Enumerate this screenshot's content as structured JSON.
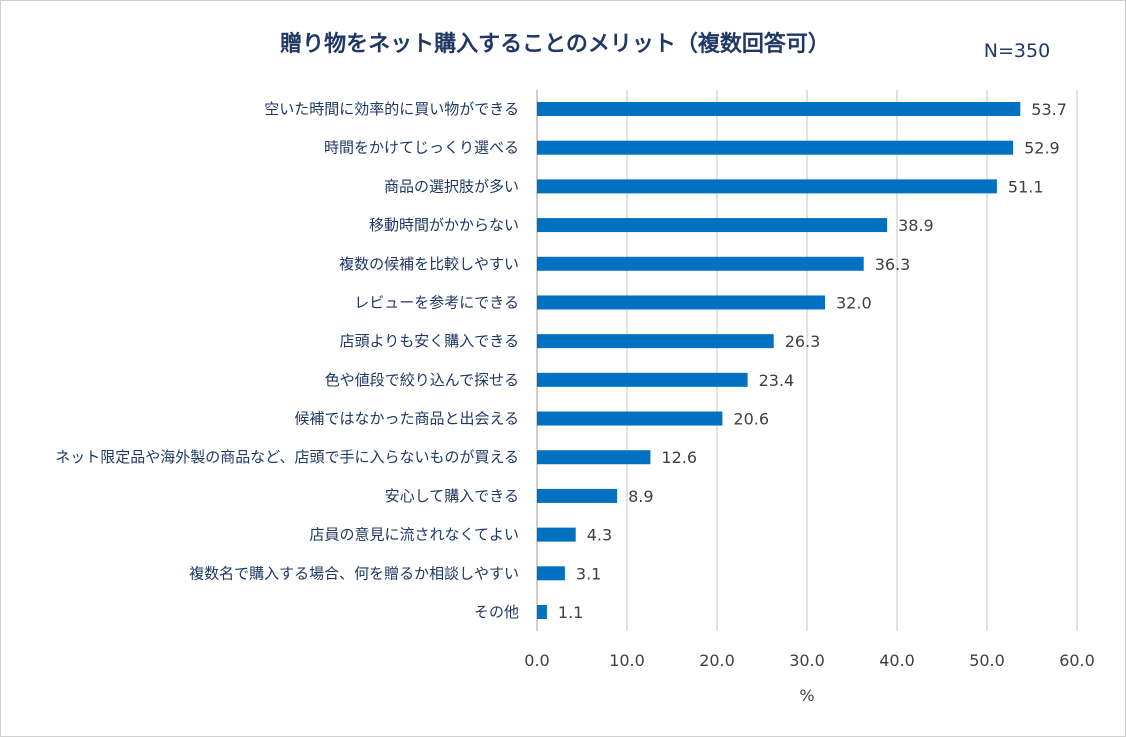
{
  "chart_data": {
    "type": "bar",
    "orientation": "horizontal",
    "title": "贈り物をネット購入することのメリット（複数回答可）",
    "annotation": "N=350",
    "xlabel": "%",
    "ylabel": "",
    "xlim": [
      0,
      60
    ],
    "ticks": [
      "0.0",
      "10.0",
      "20.0",
      "30.0",
      "40.0",
      "50.0",
      "60.0"
    ],
    "grid": true,
    "bar_color": "#0070c0",
    "categories": [
      "空いた時間に効率的に買い物ができる",
      "時間をかけてじっくり選べる",
      "商品の選択肢が多い",
      "移動時間がかからない",
      "複数の候補を比較しやすい",
      "レビューを参考にできる",
      "店頭よりも安く購入できる",
      "色や値段で絞り込んで探せる",
      "候補ではなかった商品と出会える",
      "ネット限定品や海外製の商品など、店頭で手に入らないものが買える",
      "安心して購入できる",
      "店員の意見に流されなくてよい",
      "複数名で購入する場合、何を贈るか相談しやすい",
      "その他"
    ],
    "values": [
      53.7,
      52.9,
      51.1,
      38.9,
      36.3,
      32.0,
      26.3,
      23.4,
      20.6,
      12.6,
      8.9,
      4.3,
      3.1,
      1.1
    ],
    "value_labels": [
      "53.7",
      "52.9",
      "51.1",
      "38.9",
      "36.3",
      "32.0",
      "26.3",
      "23.4",
      "20.6",
      "12.6",
      "8.9",
      "4.3",
      "3.1",
      "1.1"
    ]
  }
}
